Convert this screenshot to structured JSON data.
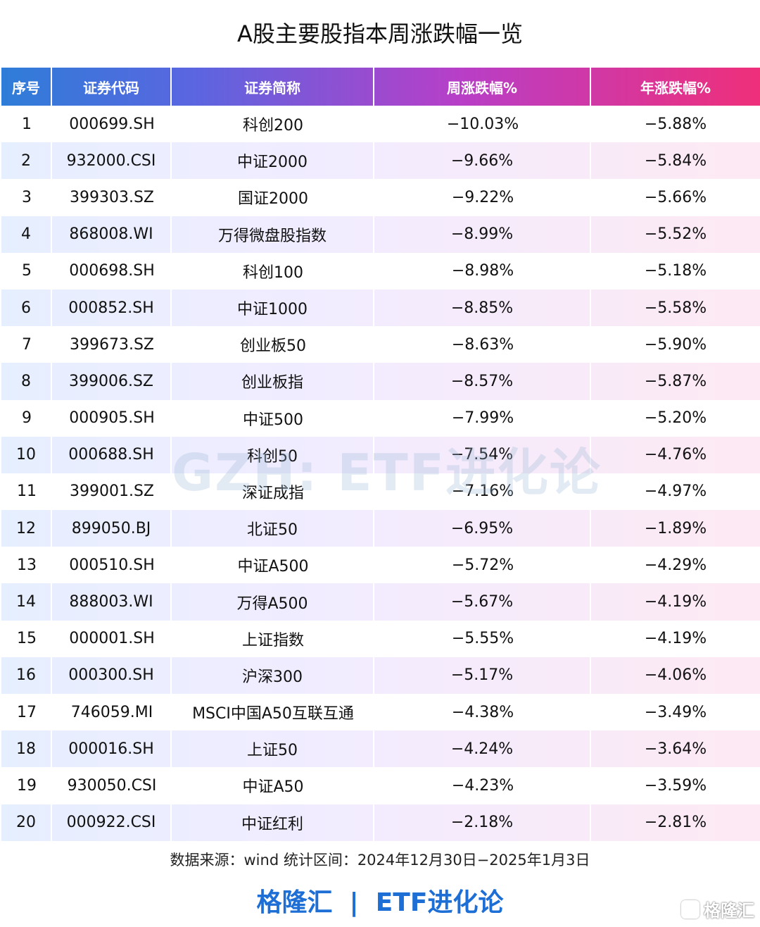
{
  "title": "A股主要股指本周涨跌幅一览",
  "headers": [
    "序号",
    "证券代码",
    "证券简称",
    "周涨跌幅%",
    "年涨跌幅%"
  ],
  "rows": [
    [
      "1",
      "000699.SH",
      "科创200",
      "−10.03%",
      "−5.88%"
    ],
    [
      "2",
      "932000.CSI",
      "中证2000",
      "−9.66%",
      "−5.84%"
    ],
    [
      "3",
      "399303.SZ",
      "国证2000",
      "−9.22%",
      "−5.66%"
    ],
    [
      "4",
      "868008.WI",
      "万得微盘股指数",
      "−8.99%",
      "−5.52%"
    ],
    [
      "5",
      "000698.SH",
      "科创100",
      "−8.98%",
      "−5.18%"
    ],
    [
      "6",
      "000852.SH",
      "中证1000",
      "−8.85%",
      "−5.58%"
    ],
    [
      "7",
      "399673.SZ",
      "创业板50",
      "−8.63%",
      "−5.90%"
    ],
    [
      "8",
      "399006.SZ",
      "创业板指",
      "−8.57%",
      "−5.87%"
    ],
    [
      "9",
      "000905.SH",
      "中证500",
      "−7.99%",
      "−5.20%"
    ],
    [
      "10",
      "000688.SH",
      "科创50",
      "−7.54%",
      "−4.76%"
    ],
    [
      "11",
      "399001.SZ",
      "深证成指",
      "−7.16%",
      "−4.97%"
    ],
    [
      "12",
      "899050.BJ",
      "北证50",
      "−6.95%",
      "−1.89%"
    ],
    [
      "13",
      "000510.SH",
      "中证A500",
      "−5.72%",
      "−4.29%"
    ],
    [
      "14",
      "888003.WI",
      "万得A500",
      "−5.67%",
      "−4.19%"
    ],
    [
      "15",
      "000001.SH",
      "上证指数",
      "−5.55%",
      "−4.19%"
    ],
    [
      "16",
      "000300.SH",
      "沪深300",
      "−5.17%",
      "−4.06%"
    ],
    [
      "17",
      "746059.MI",
      "MSCI中国A50互联互通",
      "−4.38%",
      "−3.49%"
    ],
    [
      "18",
      "000016.SH",
      "上证50",
      "−4.24%",
      "−3.64%"
    ],
    [
      "19",
      "930050.CSI",
      "中证A50",
      "−4.23%",
      "−3.59%"
    ],
    [
      "20",
      "000922.CSI",
      "中证红利",
      "−2.18%",
      "−2.81%"
    ]
  ],
  "watermark": "GZH: ETF进化论",
  "source": "数据来源：wind 统计区间：2024年12月30日−2025年1月3日",
  "brand": {
    "left": "格隆汇",
    "separator": "|",
    "right": "ETF进化论"
  },
  "corner_logo": "格隆汇",
  "colors": {
    "header_gradient_start": "#2e7dd8",
    "header_gradient_end": "#ef2f7a",
    "brand_blue": "#1d6fd6",
    "stripe_row": "#f0ecff"
  }
}
